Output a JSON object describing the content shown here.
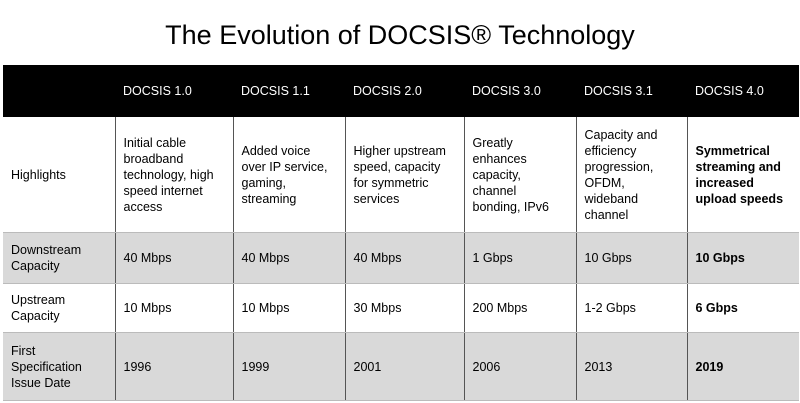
{
  "title": "The Evolution of DOCSIS® Technology",
  "table": {
    "headers": [
      "",
      "DOCSIS 1.0",
      "DOCSIS 1.1",
      "DOCSIS 2.0",
      "DOCSIS 3.0",
      "DOCSIS 3.1",
      "DOCSIS 4.0"
    ],
    "rows": [
      {
        "label": "Highlights",
        "cells": [
          "Initial cable broadband technology, high speed internet access",
          "Added voice over IP service, gaming, streaming",
          "Higher upstream speed, capacity for symmetric services",
          "Greatly enhances capacity, channel bonding, IPv6",
          "Capacity and efficiency progression, OFDM, wideband channel",
          "Symmetrical streaming and increased upload speeds"
        ]
      },
      {
        "label": "Downstream Capacity",
        "cells": [
          "40 Mbps",
          "40 Mbps",
          "40 Mbps",
          "1 Gbps",
          "10 Gbps",
          "10 Gbps"
        ]
      },
      {
        "label": "Upstream Capacity",
        "cells": [
          "10 Mbps",
          "10 Mbps",
          "30 Mbps",
          "200 Mbps",
          "1-2 Gbps",
          "6 Gbps"
        ]
      },
      {
        "label": "First Specification Issue Date",
        "cells": [
          "1996",
          "1999",
          "2001",
          "2006",
          "2013",
          "2019"
        ]
      }
    ]
  }
}
